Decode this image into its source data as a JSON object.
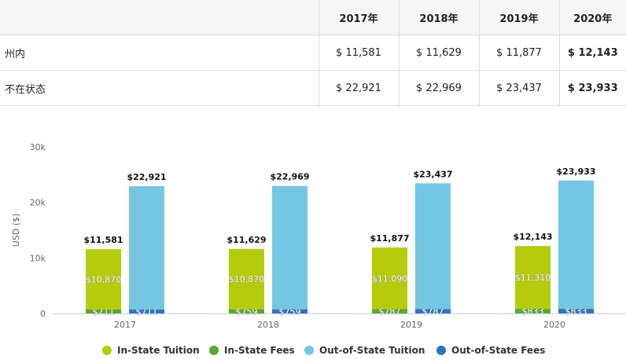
{
  "table": {
    "headers": [
      "",
      "2017年",
      "2018年",
      "2019年",
      "2020年"
    ],
    "rows": [
      {
        "label": "州内",
        "cells": [
          "$ 11,581",
          "$ 11,629",
          "$ 11,877",
          "$ 12,143"
        ]
      },
      {
        "label": "不在状态",
        "cells": [
          "$ 22,921",
          "$ 22,969",
          "$ 23,437",
          "$ 23,933"
        ]
      }
    ]
  },
  "chart_data": {
    "type": "bar",
    "stacked": true,
    "categories": [
      "2017",
      "2018",
      "2019",
      "2020"
    ],
    "ylabel": "USD ($)",
    "ylim": [
      0,
      30000
    ],
    "yticks": [
      "0",
      "10k",
      "20k",
      "30k"
    ],
    "grid": false,
    "legend_position": "bottom",
    "series": [
      {
        "name": "In-State Tuition",
        "stack": "in",
        "color": "#b5cc0c",
        "values": [
          10870,
          10870,
          11090,
          11310
        ],
        "labels": [
          "$10,870",
          "$10,870",
          "$11,090",
          "$11,310"
        ]
      },
      {
        "name": "In-State Fees",
        "stack": "in",
        "color": "#58a832",
        "values": [
          711,
          759,
          787,
          833
        ],
        "labels": [
          "$711",
          "$759",
          "$787",
          "$833"
        ]
      },
      {
        "name": "Out-of-State Tuition",
        "stack": "out",
        "color": "#74c6e2",
        "values": [
          22210,
          22210,
          22650,
          23100
        ],
        "labels": [
          "",
          "",
          "",
          ""
        ]
      },
      {
        "name": "Out-of-State Fees",
        "stack": "out",
        "color": "#2b77be",
        "values": [
          711,
          759,
          787,
          833
        ],
        "labels": [
          "$711",
          "$759",
          "$787",
          "$833"
        ]
      }
    ],
    "totals": {
      "in": [
        "$11,581",
        "$11,629",
        "$11,877",
        "$12,143"
      ],
      "out": [
        "$22,921",
        "$22,969",
        "$23,437",
        "$23,933"
      ]
    }
  }
}
